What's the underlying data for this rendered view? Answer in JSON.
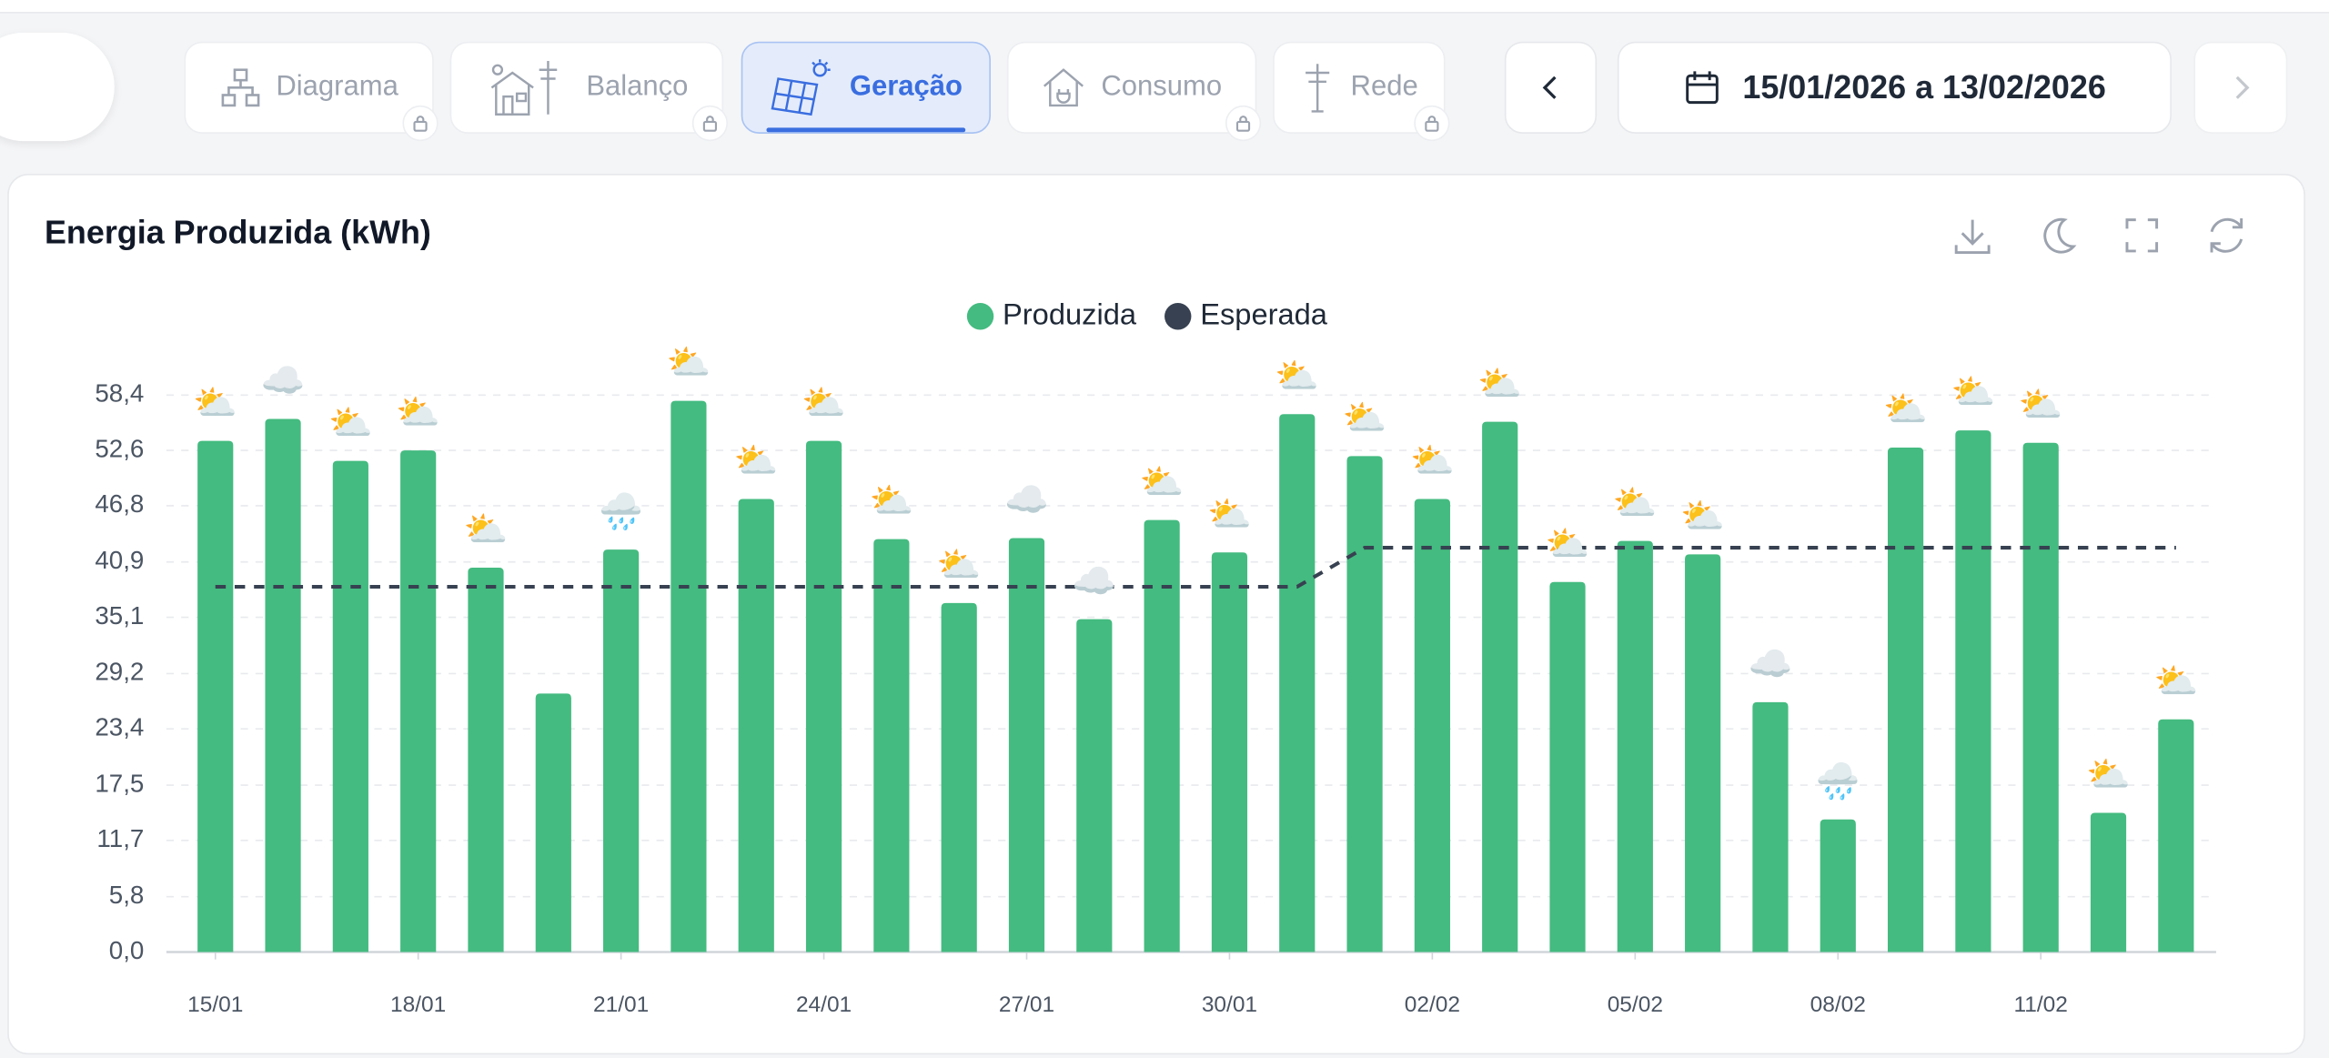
{
  "tabs": [
    {
      "label": "Diagrama"
    },
    {
      "label": "Balanço"
    },
    {
      "label": "Geração"
    },
    {
      "label": "Consumo"
    },
    {
      "label": "Rede"
    }
  ],
  "date_range": "15/01/2026 a 13/02/2026",
  "chart_data": {
    "type": "bar",
    "title": "Energia Produzida (kWh)",
    "categories": [
      "15/01",
      null,
      null,
      "18/01",
      null,
      null,
      "21/01",
      null,
      null,
      "24/01",
      null,
      null,
      "27/01",
      null,
      null,
      "30/01",
      null,
      null,
      "02/02",
      null,
      null,
      "05/02",
      null,
      null,
      "08/02",
      null,
      null,
      "11/02",
      null,
      null
    ],
    "series": [
      {
        "name": "Produzida",
        "color": "#44bb80",
        "type": "bar",
        "values": [
          53.6,
          55.9,
          51.5,
          52.6,
          40.3,
          27.1,
          42.2,
          57.8,
          47.5,
          53.6,
          43.3,
          36.6,
          43.4,
          34.9,
          45.3,
          41.9,
          56.4,
          52.0,
          47.5,
          55.6,
          38.8,
          43.1,
          41.7,
          26.2,
          13.9,
          52.9,
          54.7,
          53.4,
          14.6,
          24.4
        ]
      },
      {
        "name": "Esperada",
        "color": "#374151",
        "type": "line",
        "values": [
          38.3,
          38.3,
          38.3,
          38.3,
          38.3,
          38.3,
          38.3,
          38.3,
          38.3,
          38.3,
          38.3,
          38.3,
          38.3,
          38.3,
          38.3,
          38.3,
          38.3,
          42.4,
          42.4,
          42.4,
          42.4,
          42.4,
          42.4,
          42.4,
          42.4,
          42.4,
          42.4,
          42.4,
          42.4,
          42.4
        ]
      }
    ],
    "weather": [
      "⛅",
      "☁️",
      "⛅",
      "⛅",
      "⛅",
      null,
      "🌧️",
      "⛅",
      "⛅",
      "⛅",
      "⛅",
      "⛅",
      "☁️",
      "☁️",
      "⛅",
      "⛅",
      "⛅",
      "⛅",
      "⛅",
      "⛅",
      "⛅",
      "⛅",
      "⛅",
      "☁️",
      "🌧️",
      "⛅",
      "⛅",
      "⛅",
      "⛅",
      "⛅"
    ],
    "ylim": [
      0,
      58.4
    ],
    "yticks": [
      {
        "value": 0,
        "label": "0,0"
      },
      {
        "value": 5.8,
        "label": "5,8"
      },
      {
        "value": 11.7,
        "label": "11,7"
      },
      {
        "value": 17.5,
        "label": "17,5"
      },
      {
        "value": 23.4,
        "label": "23,4"
      },
      {
        "value": 29.2,
        "label": "29,2"
      },
      {
        "value": 35.1,
        "label": "35,1"
      },
      {
        "value": 40.9,
        "label": "40,9"
      },
      {
        "value": 46.8,
        "label": "46,8"
      },
      {
        "value": 52.6,
        "label": "52,6"
      },
      {
        "value": 58.4,
        "label": "58,4"
      }
    ],
    "grid": true,
    "legend": "top"
  }
}
